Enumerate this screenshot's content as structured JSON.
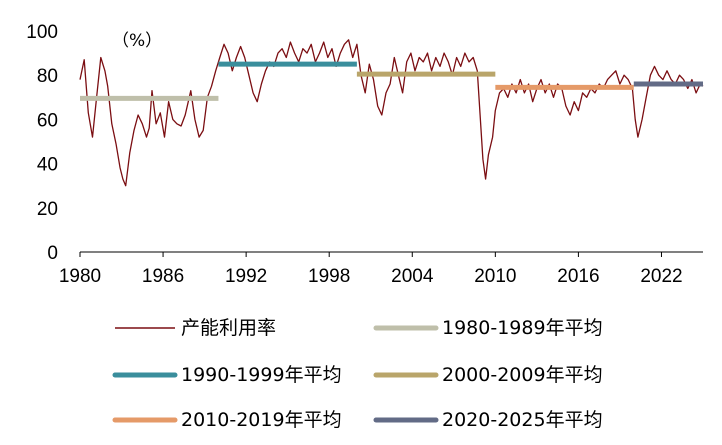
{
  "chart_data": {
    "type": "line",
    "unit_label": "（%）",
    "xlim": [
      1980,
      2025
    ],
    "ylim": [
      0,
      100
    ],
    "x_ticks": [
      "1980",
      "1986",
      "1992",
      "1998",
      "2004",
      "2010",
      "2016",
      "2022"
    ],
    "y_ticks": [
      "0",
      "20",
      "40",
      "60",
      "80",
      "100"
    ],
    "series": [
      {
        "name": "产能利用率",
        "color": "#7b0e12",
        "kind": "line",
        "points": [
          [
            1980.0,
            78
          ],
          [
            1980.3,
            87
          ],
          [
            1980.6,
            63
          ],
          [
            1980.9,
            52
          ],
          [
            1981.2,
            70
          ],
          [
            1981.5,
            88
          ],
          [
            1981.8,
            82
          ],
          [
            1982.0,
            75
          ],
          [
            1982.3,
            58
          ],
          [
            1982.6,
            49
          ],
          [
            1982.9,
            38
          ],
          [
            1983.1,
            33
          ],
          [
            1983.3,
            30
          ],
          [
            1983.6,
            45
          ],
          [
            1983.9,
            55
          ],
          [
            1984.2,
            62
          ],
          [
            1984.5,
            58
          ],
          [
            1984.8,
            52
          ],
          [
            1985.0,
            56
          ],
          [
            1985.2,
            73
          ],
          [
            1985.5,
            58
          ],
          [
            1985.8,
            63
          ],
          [
            1986.1,
            52
          ],
          [
            1986.4,
            68
          ],
          [
            1986.7,
            60
          ],
          [
            1987.0,
            58
          ],
          [
            1987.3,
            57
          ],
          [
            1987.6,
            62
          ],
          [
            1988.0,
            73
          ],
          [
            1988.3,
            60
          ],
          [
            1988.6,
            52
          ],
          [
            1988.9,
            55
          ],
          [
            1989.2,
            70
          ],
          [
            1989.5,
            75
          ],
          [
            1989.8,
            82
          ],
          [
            1990.1,
            88
          ],
          [
            1990.4,
            94
          ],
          [
            1990.7,
            90
          ],
          [
            1991.0,
            82
          ],
          [
            1991.3,
            88
          ],
          [
            1991.6,
            93
          ],
          [
            1991.9,
            88
          ],
          [
            1992.2,
            80
          ],
          [
            1992.5,
            72
          ],
          [
            1992.8,
            68
          ],
          [
            1993.1,
            76
          ],
          [
            1993.4,
            82
          ],
          [
            1993.7,
            86
          ],
          [
            1994.0,
            84
          ],
          [
            1994.3,
            90
          ],
          [
            1994.6,
            92
          ],
          [
            1994.9,
            88
          ],
          [
            1995.2,
            95
          ],
          [
            1995.5,
            90
          ],
          [
            1995.8,
            86
          ],
          [
            1996.1,
            92
          ],
          [
            1996.4,
            90
          ],
          [
            1996.7,
            94
          ],
          [
            1997.0,
            86
          ],
          [
            1997.3,
            90
          ],
          [
            1997.6,
            95
          ],
          [
            1997.9,
            88
          ],
          [
            1998.2,
            92
          ],
          [
            1998.5,
            84
          ],
          [
            1998.8,
            90
          ],
          [
            1999.1,
            94
          ],
          [
            1999.4,
            96
          ],
          [
            1999.7,
            88
          ],
          [
            2000.0,
            94
          ],
          [
            2000.3,
            80
          ],
          [
            2000.6,
            72
          ],
          [
            2000.9,
            85
          ],
          [
            2001.2,
            78
          ],
          [
            2001.5,
            66
          ],
          [
            2001.8,
            62
          ],
          [
            2002.1,
            72
          ],
          [
            2002.4,
            76
          ],
          [
            2002.7,
            88
          ],
          [
            2003.0,
            80
          ],
          [
            2003.3,
            72
          ],
          [
            2003.6,
            86
          ],
          [
            2003.9,
            90
          ],
          [
            2004.2,
            82
          ],
          [
            2004.5,
            88
          ],
          [
            2004.8,
            86
          ],
          [
            2005.1,
            90
          ],
          [
            2005.4,
            82
          ],
          [
            2005.7,
            88
          ],
          [
            2006.0,
            84
          ],
          [
            2006.3,
            90
          ],
          [
            2006.6,
            86
          ],
          [
            2006.9,
            80
          ],
          [
            2007.2,
            88
          ],
          [
            2007.5,
            84
          ],
          [
            2007.8,
            90
          ],
          [
            2008.1,
            86
          ],
          [
            2008.4,
            88
          ],
          [
            2008.7,
            82
          ],
          [
            2008.9,
            62
          ],
          [
            2009.1,
            42
          ],
          [
            2009.3,
            33
          ],
          [
            2009.5,
            44
          ],
          [
            2009.8,
            52
          ],
          [
            2010.0,
            64
          ],
          [
            2010.3,
            72
          ],
          [
            2010.6,
            74
          ],
          [
            2010.9,
            70
          ],
          [
            2011.2,
            76
          ],
          [
            2011.5,
            72
          ],
          [
            2011.8,
            78
          ],
          [
            2012.1,
            72
          ],
          [
            2012.4,
            76
          ],
          [
            2012.7,
            68
          ],
          [
            2013.0,
            74
          ],
          [
            2013.3,
            78
          ],
          [
            2013.6,
            72
          ],
          [
            2013.9,
            76
          ],
          [
            2014.2,
            70
          ],
          [
            2014.5,
            76
          ],
          [
            2014.8,
            74
          ],
          [
            2015.1,
            66
          ],
          [
            2015.4,
            62
          ],
          [
            2015.7,
            68
          ],
          [
            2016.0,
            64
          ],
          [
            2016.3,
            72
          ],
          [
            2016.6,
            70
          ],
          [
            2016.9,
            74
          ],
          [
            2017.2,
            72
          ],
          [
            2017.5,
            76
          ],
          [
            2017.8,
            74
          ],
          [
            2018.1,
            78
          ],
          [
            2018.4,
            80
          ],
          [
            2018.7,
            82
          ],
          [
            2019.0,
            76
          ],
          [
            2019.3,
            80
          ],
          [
            2019.6,
            78
          ],
          [
            2019.9,
            74
          ],
          [
            2020.1,
            60
          ],
          [
            2020.3,
            52
          ],
          [
            2020.6,
            60
          ],
          [
            2020.9,
            70
          ],
          [
            2021.2,
            80
          ],
          [
            2021.5,
            84
          ],
          [
            2021.8,
            80
          ],
          [
            2022.1,
            78
          ],
          [
            2022.4,
            82
          ],
          [
            2022.7,
            78
          ],
          [
            2023.0,
            76
          ],
          [
            2023.3,
            80
          ],
          [
            2023.6,
            78
          ],
          [
            2023.9,
            74
          ],
          [
            2024.2,
            78
          ],
          [
            2024.5,
            72
          ],
          [
            2024.8,
            76
          ],
          [
            2025.0,
            75
          ]
        ]
      },
      {
        "name": "1980-1989年平均",
        "color": "#bfbfaa",
        "kind": "avg",
        "x": [
          1980,
          1990
        ],
        "value": 69.5
      },
      {
        "name": "1990-1999年平均",
        "color": "#3a8e9c",
        "kind": "avg",
        "x": [
          1990,
          2000
        ],
        "value": 85
      },
      {
        "name": "2000-2009年平均",
        "color": "#b9a56a",
        "kind": "avg",
        "x": [
          2000,
          2010
        ],
        "value": 80.5
      },
      {
        "name": "2010-2019年平均",
        "color": "#e59a68",
        "kind": "avg",
        "x": [
          2010,
          2020
        ],
        "value": 74.5
      },
      {
        "name": "2020-2025年平均",
        "color": "#626b86",
        "kind": "avg",
        "x": [
          2020,
          2025
        ],
        "value": 76
      }
    ]
  }
}
